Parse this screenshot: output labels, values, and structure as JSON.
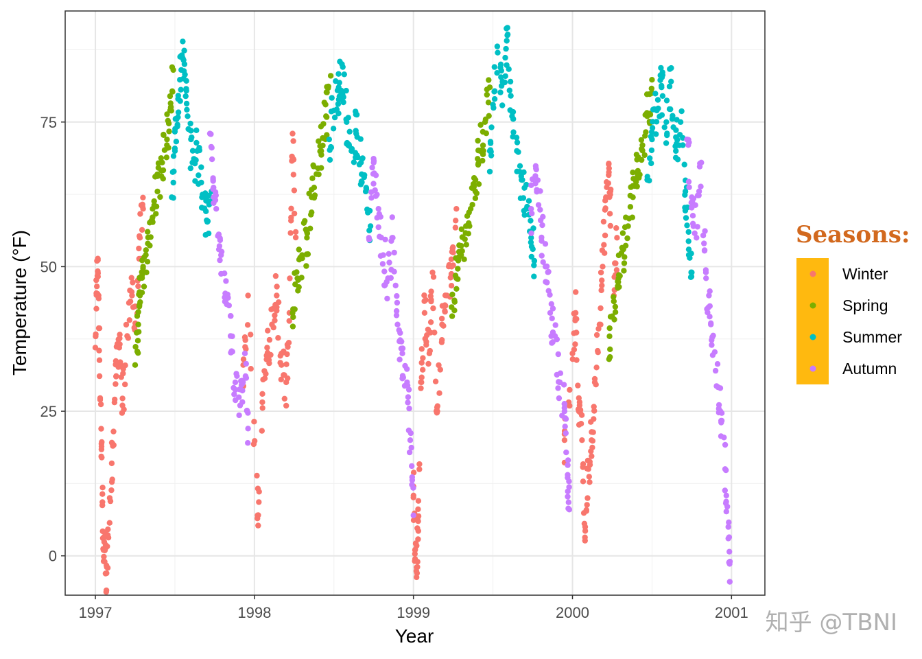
{
  "chart_data": {
    "type": "scatter",
    "title": "",
    "xlabel": "Year",
    "ylabel": "Temperature (°F)",
    "xlim": [
      1996.81,
      2001.21
    ],
    "ylim": [
      -6.8,
      94.2
    ],
    "x_ticks": [
      1997,
      1998,
      1999,
      2000,
      2001
    ],
    "x_tick_labels": [
      "1997",
      "1998",
      "1999",
      "2000",
      "2001"
    ],
    "y_ticks": [
      0,
      25,
      50,
      75
    ],
    "y_tick_labels": [
      "0",
      "25",
      "50",
      "75"
    ],
    "grid": true,
    "legend": {
      "title": "Seasons:",
      "placement": "right",
      "background": "#ffb90f",
      "title_color": "#d2691e"
    },
    "series": [
      {
        "name": "Winter",
        "color": "#f8766d",
        "key_points": [
          [
            1997.0,
            36
          ],
          [
            1997.01,
            51
          ],
          [
            1997.02,
            45
          ],
          [
            1997.03,
            27
          ],
          [
            1997.04,
            17
          ],
          [
            1997.05,
            3
          ],
          [
            1997.06,
            1
          ],
          [
            1997.07,
            -3
          ],
          [
            1997.09,
            10
          ],
          [
            1997.11,
            19
          ],
          [
            1997.13,
            31
          ],
          [
            1997.15,
            36
          ],
          [
            1997.17,
            26
          ],
          [
            1997.2,
            38
          ],
          [
            1997.23,
            45
          ],
          [
            1997.26,
            40
          ],
          [
            1997.28,
            55
          ],
          [
            1997.3,
            60
          ],
          [
            1997.93,
            33
          ],
          [
            1997.96,
            45
          ],
          [
            1998.02,
            7
          ],
          [
            1998.05,
            28
          ],
          [
            1998.08,
            36
          ],
          [
            1998.11,
            40
          ],
          [
            1998.14,
            45
          ],
          [
            1998.17,
            33
          ],
          [
            1998.2,
            30
          ],
          [
            1998.22,
            42
          ],
          [
            1998.24,
            73
          ],
          [
            1998.26,
            56
          ],
          [
            1999.0,
            12
          ],
          [
            1999.01,
            1
          ],
          [
            1999.02,
            -2
          ],
          [
            1999.03,
            6
          ],
          [
            1999.05,
            30
          ],
          [
            1999.07,
            42
          ],
          [
            1999.1,
            35
          ],
          [
            1999.12,
            49
          ],
          [
            1999.15,
            25
          ],
          [
            1999.18,
            40
          ],
          [
            1999.21,
            45
          ],
          [
            1999.24,
            50
          ],
          [
            1999.27,
            60
          ],
          [
            1999.95,
            20
          ],
          [
            2000.0,
            35
          ],
          [
            2000.02,
            42
          ],
          [
            2000.04,
            25
          ],
          [
            2000.06,
            20
          ],
          [
            2000.08,
            5
          ],
          [
            2000.1,
            15
          ],
          [
            2000.12,
            20
          ],
          [
            2000.14,
            30
          ],
          [
            2000.17,
            40
          ],
          [
            2000.19,
            50
          ],
          [
            2000.21,
            62
          ],
          [
            2000.23,
            67
          ],
          [
            2000.26,
            45
          ],
          [
            2000.28,
            55
          ]
        ]
      },
      {
        "name": "Spring",
        "color": "#7cae00",
        "key_points": [
          [
            1997.25,
            33
          ],
          [
            1997.27,
            40
          ],
          [
            1997.28,
            45
          ],
          [
            1997.3,
            50
          ],
          [
            1997.33,
            54
          ],
          [
            1997.36,
            60
          ],
          [
            1997.39,
            63
          ],
          [
            1997.42,
            68
          ],
          [
            1997.45,
            72
          ],
          [
            1997.47,
            77
          ],
          [
            1997.49,
            84
          ],
          [
            1998.24,
            42
          ],
          [
            1998.27,
            48
          ],
          [
            1998.3,
            52
          ],
          [
            1998.33,
            55
          ],
          [
            1998.36,
            62
          ],
          [
            1998.39,
            66
          ],
          [
            1998.42,
            70
          ],
          [
            1998.45,
            76
          ],
          [
            1998.48,
            83
          ],
          [
            1999.24,
            43
          ],
          [
            1999.27,
            48
          ],
          [
            1999.3,
            52
          ],
          [
            1999.33,
            57
          ],
          [
            1999.36,
            60
          ],
          [
            1999.39,
            65
          ],
          [
            1999.42,
            70
          ],
          [
            1999.45,
            75
          ],
          [
            1999.48,
            81
          ],
          [
            2000.23,
            34
          ],
          [
            2000.26,
            44
          ],
          [
            2000.29,
            48
          ],
          [
            2000.32,
            53
          ],
          [
            2000.35,
            57
          ],
          [
            2000.38,
            62
          ],
          [
            2000.41,
            66
          ],
          [
            2000.44,
            71
          ],
          [
            2000.47,
            76
          ],
          [
            2000.5,
            80
          ]
        ]
      },
      {
        "name": "Summer",
        "color": "#00bfc4",
        "key_points": [
          [
            1997.48,
            62
          ],
          [
            1997.5,
            70
          ],
          [
            1997.52,
            79
          ],
          [
            1997.54,
            84
          ],
          [
            1997.56,
            85
          ],
          [
            1997.58,
            76
          ],
          [
            1997.61,
            68
          ],
          [
            1997.64,
            70
          ],
          [
            1997.67,
            62
          ],
          [
            1997.7,
            58
          ],
          [
            1997.73,
            63
          ],
          [
            1998.47,
            72
          ],
          [
            1998.5,
            77
          ],
          [
            1998.53,
            81
          ],
          [
            1998.55,
            85
          ],
          [
            1998.58,
            75
          ],
          [
            1998.61,
            70
          ],
          [
            1998.64,
            73
          ],
          [
            1998.67,
            68
          ],
          [
            1998.7,
            63
          ],
          [
            1998.73,
            57
          ],
          [
            1999.48,
            70
          ],
          [
            1999.5,
            78
          ],
          [
            1999.53,
            87
          ],
          [
            1999.56,
            82
          ],
          [
            1999.59,
            90
          ],
          [
            1999.62,
            76
          ],
          [
            1999.65,
            70
          ],
          [
            1999.68,
            65
          ],
          [
            1999.71,
            60
          ],
          [
            1999.74,
            55
          ],
          [
            1999.76,
            51
          ],
          [
            2000.47,
            65
          ],
          [
            2000.5,
            72
          ],
          [
            2000.53,
            77
          ],
          [
            2000.56,
            81
          ],
          [
            2000.59,
            75
          ],
          [
            2000.62,
            82
          ],
          [
            2000.65,
            70
          ],
          [
            2000.68,
            75
          ],
          [
            2000.71,
            63
          ],
          [
            2000.73,
            56
          ],
          [
            2000.75,
            49
          ]
        ]
      },
      {
        "name": "Autumn",
        "color": "#c77cff",
        "key_points": [
          [
            1997.72,
            73
          ],
          [
            1997.74,
            65
          ],
          [
            1997.76,
            60
          ],
          [
            1997.79,
            52
          ],
          [
            1997.82,
            45
          ],
          [
            1997.85,
            38
          ],
          [
            1997.88,
            30
          ],
          [
            1997.91,
            26
          ],
          [
            1997.94,
            35
          ],
          [
            1997.96,
            22
          ],
          [
            1998.72,
            55
          ],
          [
            1998.75,
            68
          ],
          [
            1998.78,
            60
          ],
          [
            1998.81,
            52
          ],
          [
            1998.84,
            48
          ],
          [
            1998.87,
            55
          ],
          [
            1998.9,
            40
          ],
          [
            1998.93,
            35
          ],
          [
            1998.96,
            30
          ],
          [
            1998.98,
            20
          ],
          [
            1999.0,
            7
          ],
          [
            1999.74,
            60
          ],
          [
            1999.77,
            67
          ],
          [
            1999.8,
            58
          ],
          [
            1999.83,
            50
          ],
          [
            1999.86,
            42
          ],
          [
            1999.89,
            38
          ],
          [
            1999.92,
            30
          ],
          [
            1999.95,
            25
          ],
          [
            1999.97,
            14
          ],
          [
            1999.98,
            8
          ],
          [
            2000.72,
            72
          ],
          [
            2000.75,
            62
          ],
          [
            2000.78,
            55
          ],
          [
            2000.81,
            68
          ],
          [
            2000.84,
            48
          ],
          [
            2000.87,
            40
          ],
          [
            2000.9,
            32
          ],
          [
            2000.93,
            25
          ],
          [
            2000.96,
            15
          ],
          [
            2000.98,
            5
          ],
          [
            2000.99,
            -1
          ]
        ]
      }
    ]
  },
  "watermark": "知乎 @TBNI"
}
